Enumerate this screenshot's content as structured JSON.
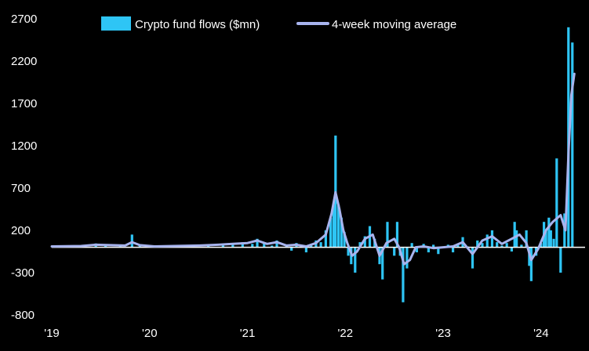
{
  "chart_data": {
    "type": "bar+line",
    "title": "",
    "xlabel": "",
    "ylabel": "",
    "ylim": [
      -800,
      2700
    ],
    "yticks": [
      2700,
      2200,
      1700,
      1200,
      700,
      200,
      -300,
      -800
    ],
    "ytick_labels": [
      "2700",
      "2200",
      "1700",
      "1200",
      "700",
      "200",
      "-300",
      "-800"
    ],
    "xlim": [
      2019.0,
      2024.45
    ],
    "xticks": [
      2019,
      2020,
      2021,
      2022,
      2023,
      2024
    ],
    "xtick_labels": [
      "'19",
      "'20",
      "'21",
      "'22",
      "'23",
      "'24"
    ],
    "grid": false,
    "legend_position": "top",
    "colors": {
      "bars": "#2ec5f5",
      "line": "#a8b4ee",
      "zero_line": "#ffffff",
      "background": "#000000",
      "text": "#ffffff"
    },
    "series": [
      {
        "name": "Crypto fund flows ($mn)",
        "kind": "bar",
        "points": [
          [
            2019.05,
            10
          ],
          [
            2019.2,
            15
          ],
          [
            2019.3,
            20
          ],
          [
            2019.45,
            45
          ],
          [
            2019.55,
            30
          ],
          [
            2019.7,
            20
          ],
          [
            2019.82,
            150
          ],
          [
            2019.9,
            30
          ],
          [
            2020.1,
            10
          ],
          [
            2020.25,
            15
          ],
          [
            2020.4,
            25
          ],
          [
            2020.6,
            30
          ],
          [
            2020.75,
            40
          ],
          [
            2020.85,
            50
          ],
          [
            2020.95,
            60
          ],
          [
            2021.05,
            40
          ],
          [
            2021.1,
            100
          ],
          [
            2021.17,
            50
          ],
          [
            2021.25,
            20
          ],
          [
            2021.3,
            80
          ],
          [
            2021.4,
            15
          ],
          [
            2021.45,
            -40
          ],
          [
            2021.5,
            50
          ],
          [
            2021.55,
            30
          ],
          [
            2021.6,
            -60
          ],
          [
            2021.65,
            20
          ],
          [
            2021.7,
            80
          ],
          [
            2021.75,
            60
          ],
          [
            2021.8,
            200
          ],
          [
            2021.85,
            350
          ],
          [
            2021.88,
            500
          ],
          [
            2021.9,
            1320
          ],
          [
            2021.93,
            500
          ],
          [
            2021.96,
            350
          ],
          [
            2021.99,
            180
          ],
          [
            2022.03,
            -100
          ],
          [
            2022.06,
            -200
          ],
          [
            2022.1,
            -300
          ],
          [
            2022.15,
            60
          ],
          [
            2022.2,
            130
          ],
          [
            2022.25,
            250
          ],
          [
            2022.3,
            100
          ],
          [
            2022.35,
            -200
          ],
          [
            2022.38,
            -380
          ],
          [
            2022.43,
            300
          ],
          [
            2022.5,
            -100
          ],
          [
            2022.53,
            300
          ],
          [
            2022.56,
            -100
          ],
          [
            2022.59,
            -650
          ],
          [
            2022.63,
            -250
          ],
          [
            2022.68,
            50
          ],
          [
            2022.73,
            -60
          ],
          [
            2022.8,
            40
          ],
          [
            2022.85,
            -60
          ],
          [
            2022.9,
            30
          ],
          [
            2022.95,
            -80
          ],
          [
            2023.05,
            30
          ],
          [
            2023.1,
            -60
          ],
          [
            2023.15,
            40
          ],
          [
            2023.2,
            120
          ],
          [
            2023.25,
            10
          ],
          [
            2023.3,
            -250
          ],
          [
            2023.35,
            80
          ],
          [
            2023.4,
            50
          ],
          [
            2023.45,
            150
          ],
          [
            2023.5,
            200
          ],
          [
            2023.55,
            60
          ],
          [
            2023.6,
            20
          ],
          [
            2023.65,
            50
          ],
          [
            2023.7,
            -50
          ],
          [
            2023.73,
            300
          ],
          [
            2023.75,
            200
          ],
          [
            2023.8,
            30
          ],
          [
            2023.85,
            200
          ],
          [
            2023.88,
            -220
          ],
          [
            2023.9,
            -400
          ],
          [
            2023.95,
            -100
          ],
          [
            2024.0,
            50
          ],
          [
            2024.03,
            300
          ],
          [
            2024.05,
            200
          ],
          [
            2024.08,
            350
          ],
          [
            2024.1,
            200
          ],
          [
            2024.13,
            100
          ],
          [
            2024.16,
            1050
          ],
          [
            2024.2,
            -300
          ],
          [
            2024.24,
            400
          ],
          [
            2024.28,
            2600
          ],
          [
            2024.32,
            2420
          ]
        ]
      },
      {
        "name": "4-week moving average",
        "kind": "line",
        "points": [
          [
            2019.0,
            10
          ],
          [
            2019.15,
            12
          ],
          [
            2019.3,
            15
          ],
          [
            2019.45,
            30
          ],
          [
            2019.6,
            25
          ],
          [
            2019.75,
            20
          ],
          [
            2019.82,
            60
          ],
          [
            2019.9,
            25
          ],
          [
            2020.05,
            10
          ],
          [
            2020.25,
            15
          ],
          [
            2020.5,
            20
          ],
          [
            2020.7,
            30
          ],
          [
            2020.85,
            40
          ],
          [
            2021.0,
            50
          ],
          [
            2021.1,
            80
          ],
          [
            2021.2,
            40
          ],
          [
            2021.3,
            60
          ],
          [
            2021.4,
            20
          ],
          [
            2021.5,
            30
          ],
          [
            2021.6,
            10
          ],
          [
            2021.7,
            50
          ],
          [
            2021.8,
            150
          ],
          [
            2021.86,
            400
          ],
          [
            2021.9,
            650
          ],
          [
            2021.94,
            450
          ],
          [
            2021.98,
            200
          ],
          [
            2022.02,
            50
          ],
          [
            2022.07,
            -100
          ],
          [
            2022.12,
            -50
          ],
          [
            2022.2,
            100
          ],
          [
            2022.28,
            150
          ],
          [
            2022.35,
            -100
          ],
          [
            2022.42,
            50
          ],
          [
            2022.5,
            100
          ],
          [
            2022.55,
            0
          ],
          [
            2022.6,
            -200
          ],
          [
            2022.66,
            -150
          ],
          [
            2022.72,
            0
          ],
          [
            2022.8,
            10
          ],
          [
            2022.9,
            -10
          ],
          [
            2023.0,
            0
          ],
          [
            2023.1,
            10
          ],
          [
            2023.2,
            60
          ],
          [
            2023.3,
            -80
          ],
          [
            2023.4,
            80
          ],
          [
            2023.5,
            130
          ],
          [
            2023.6,
            40
          ],
          [
            2023.7,
            100
          ],
          [
            2023.78,
            150
          ],
          [
            2023.85,
            50
          ],
          [
            2023.9,
            -150
          ],
          [
            2023.97,
            -20
          ],
          [
            2024.05,
            200
          ],
          [
            2024.12,
            300
          ],
          [
            2024.2,
            380
          ],
          [
            2024.25,
            200
          ],
          [
            2024.28,
            1100
          ],
          [
            2024.31,
            1800
          ],
          [
            2024.34,
            2050
          ]
        ]
      }
    ]
  }
}
